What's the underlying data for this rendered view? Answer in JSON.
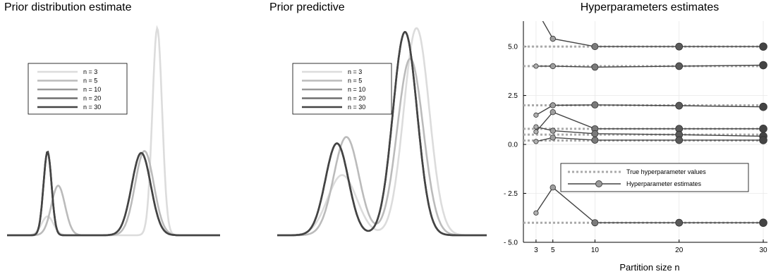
{
  "chart_data": [
    {
      "type": "line",
      "title": "Prior distribution estimate",
      "xlabel": "",
      "ylabel": "",
      "legend_position": "top-left",
      "series": [
        {
          "name": "n = 3",
          "color": "#dcdcdc",
          "components": [
            [
              0.1,
              0.19,
              0.028
            ],
            [
              0.9,
              0.705,
              0.023
            ]
          ]
        },
        {
          "name": "n = 5",
          "color": "#bbbbbb",
          "components": [
            [
              0.3,
              0.24,
              0.032
            ],
            [
              0.7,
              0.645,
              0.044
            ]
          ]
        },
        {
          "name": "n = 10",
          "color": "#999999",
          "components": [
            [
              0.3,
              0.19,
              0.019
            ],
            [
              0.7,
              0.63,
              0.045
            ]
          ]
        },
        {
          "name": "n = 20",
          "color": "#6f6f6f",
          "components": [
            [
              0.3,
              0.19,
              0.019
            ],
            [
              0.7,
              0.63,
              0.045
            ]
          ]
        },
        {
          "name": "n = 30",
          "color": "#444444",
          "components": [
            [
              0.3,
              0.19,
              0.019
            ],
            [
              0.7,
              0.63,
              0.045
            ]
          ]
        }
      ]
    },
    {
      "type": "line",
      "title": "Prior predictive",
      "xlabel": "",
      "ylabel": "",
      "legend_position": "top-left",
      "series": [
        {
          "name": "n = 3",
          "color": "#dcdcdc",
          "components": [
            [
              0.25,
              0.31,
              0.07
            ],
            [
              0.75,
              0.665,
              0.061
            ]
          ]
        },
        {
          "name": "n = 5",
          "color": "#bbbbbb",
          "components": [
            [
              0.35,
              0.33,
              0.06
            ],
            [
              0.65,
              0.635,
              0.062
            ]
          ]
        },
        {
          "name": "n = 10",
          "color": "#999999",
          "components": [
            [
              0.3,
              0.285,
              0.055
            ],
            [
              0.7,
              0.61,
              0.058
            ]
          ]
        },
        {
          "name": "n = 20",
          "color": "#6f6f6f",
          "components": [
            [
              0.3,
              0.285,
              0.055
            ],
            [
              0.7,
              0.61,
              0.058
            ]
          ]
        },
        {
          "name": "n = 30",
          "color": "#444444",
          "components": [
            [
              0.3,
              0.285,
              0.055
            ],
            [
              0.7,
              0.61,
              0.058
            ]
          ]
        }
      ]
    },
    {
      "type": "line",
      "title": "Hyperparameters estimates",
      "xlabel": "Partition size n",
      "ylabel": "",
      "xlim": [
        1.5,
        30.5
      ],
      "ylim": [
        -5.0,
        6.3
      ],
      "xticks": [
        3,
        5,
        10,
        20,
        30
      ],
      "yticks": [
        -5.0,
        -2.5,
        0.0,
        2.5,
        5.0
      ],
      "ytick_labels": [
        "- 5.0",
        "- 2.5",
        "0.0",
        "2.5",
        "5.0"
      ],
      "grid": true,
      "legend_position": "lower-middle",
      "legend_entries": [
        "True hyperparameter values",
        "Hyperparameter estimates"
      ],
      "x": [
        3,
        5,
        10,
        20,
        30
      ],
      "true_values": [
        5.0,
        4.0,
        2.0,
        0.8,
        0.5,
        0.2,
        -4.0
      ],
      "estimates": [
        [
          6.9,
          5.4,
          5.0,
          5.0,
          5.0
        ],
        [
          4.0,
          4.0,
          3.95,
          4.0,
          4.05
        ],
        [
          1.5,
          2.0,
          2.02,
          1.98,
          1.92
        ],
        [
          0.65,
          1.65,
          0.8,
          0.8,
          0.8
        ],
        [
          0.9,
          0.7,
          0.55,
          0.5,
          0.42
        ],
        [
          0.15,
          0.35,
          0.22,
          0.22,
          0.22
        ],
        [
          -3.5,
          -2.2,
          -4.0,
          -4.0,
          -4.0
        ]
      ]
    }
  ]
}
